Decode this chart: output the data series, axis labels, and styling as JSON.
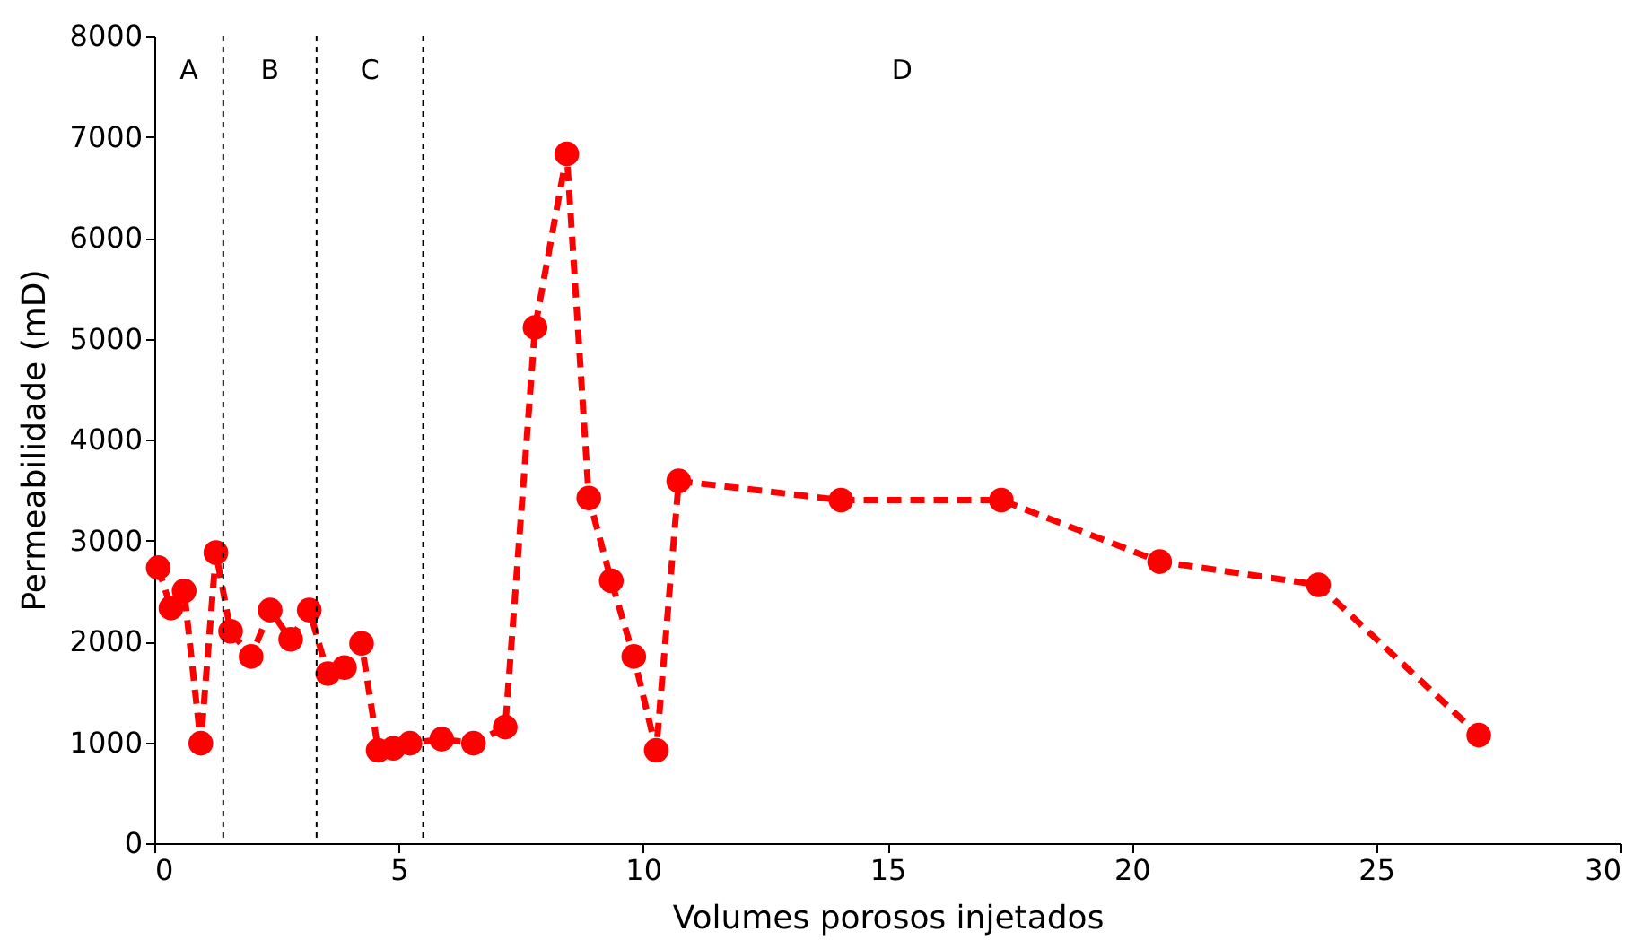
{
  "chart_data": {
    "type": "line",
    "xlabel": "Volumes porosos injetados",
    "ylabel": "Permeabilidade (mD)",
    "x": [
      0.08,
      0.34,
      0.61,
      0.95,
      1.26,
      1.56,
      1.98,
      2.37,
      2.79,
      3.17,
      3.55,
      3.89,
      4.24,
      4.58,
      4.89,
      5.23,
      5.88,
      6.53,
      7.18,
      7.79,
      8.44,
      8.89,
      9.35,
      9.81,
      10.27,
      10.73,
      14.05,
      17.33,
      20.57,
      23.82,
      27.1
    ],
    "series": [
      {
        "color": "#ff0000",
        "values": [
          2730,
          2330,
          2500,
          990,
          2880,
          2100,
          1850,
          2310,
          2020,
          2310,
          1680,
          1740,
          1980,
          920,
          940,
          990,
          1030,
          990,
          1150,
          5110,
          6830,
          3420,
          2600,
          1850,
          920,
          3590,
          3400,
          3400,
          2790,
          2560,
          1070
        ]
      }
    ],
    "marker": "circle",
    "line_style": "dashed",
    "grid": false,
    "xlim": [
      0,
      30
    ],
    "xticks": [
      0,
      5,
      10,
      15,
      20,
      25,
      30
    ],
    "ylim": [
      0,
      8000
    ],
    "yticks": [
      0,
      1000,
      2000,
      3000,
      4000,
      5000,
      6000,
      7000,
      8000
    ],
    "ref_lines": [
      {
        "axis": "x",
        "value": 1.41,
        "color": "#000000",
        "line_style": "dotted"
      },
      {
        "axis": "x",
        "value": 3.32,
        "color": "#000000",
        "line_style": "dotted"
      },
      {
        "axis": "x",
        "value": 5.5,
        "color": "#000000",
        "line_style": "dotted"
      }
    ],
    "annotations": [
      "A",
      "B",
      "C",
      "D"
    ]
  }
}
